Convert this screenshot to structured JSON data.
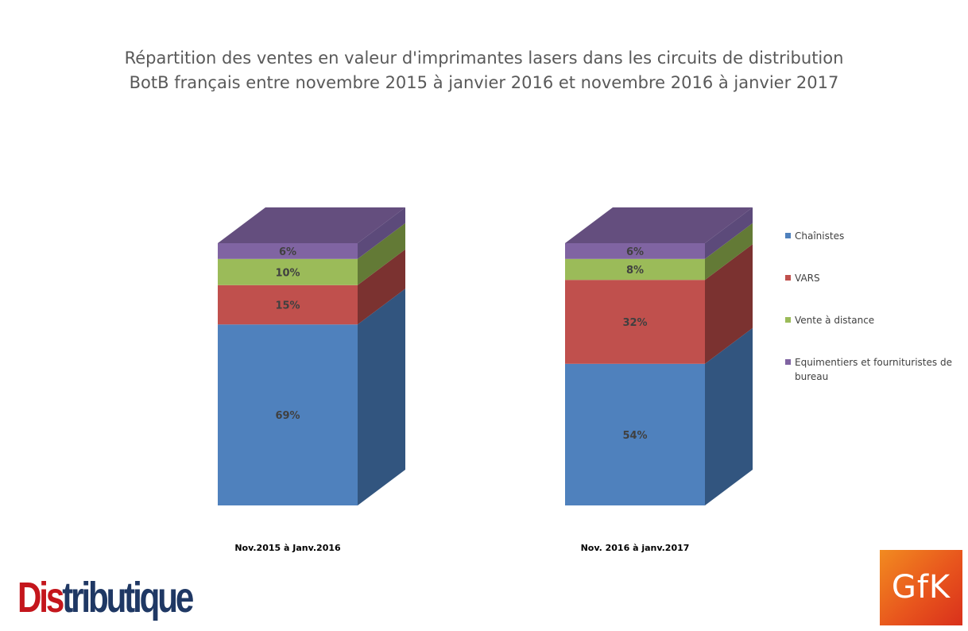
{
  "title_line1": "Répartition des ventes en valeur d'imprimantes lasers dans les circuits de distribution",
  "title_line2": "BotB français entre novembre 2015 à janvier 2016 et novembre 2016 à janvier 2017",
  "chart_data": {
    "type": "bar",
    "stacked": true,
    "three_d": true,
    "categories": [
      "Nov.2015 à Janv.2016",
      "Nov. 2016 à janv.2017"
    ],
    "series": [
      {
        "name": "Chaînistes",
        "values": [
          69,
          54
        ],
        "labels": [
          "69%",
          "54%"
        ],
        "color": "#4f81bd",
        "side_color": "#32557f"
      },
      {
        "name": "VARS",
        "values": [
          15,
          32
        ],
        "labels": [
          "15%",
          "32%"
        ],
        "color": "#c0504d",
        "side_color": "#7b3230"
      },
      {
        "name": "Vente à distance",
        "values": [
          10,
          8
        ],
        "labels": [
          "10%",
          "8%"
        ],
        "color": "#9bbb59",
        "side_color": "#637a36"
      },
      {
        "name": "Equimentiers et fournituristes de bureau",
        "values": [
          6,
          6
        ],
        "labels": [
          "6%",
          "6%"
        ],
        "color": "#8064a2",
        "side_color": "#5c4a7a"
      }
    ],
    "legend_position": "right",
    "grid": false
  },
  "legend_lines": [
    [
      "Chaînistes"
    ],
    [
      "VARS"
    ],
    [
      "Vente à distance"
    ],
    [
      "Equimentiers et fournituristes de",
      "bureau"
    ]
  ],
  "logos": {
    "distributique_a": "Dis",
    "distributique_b": "tributique",
    "gfk": "GfK"
  }
}
